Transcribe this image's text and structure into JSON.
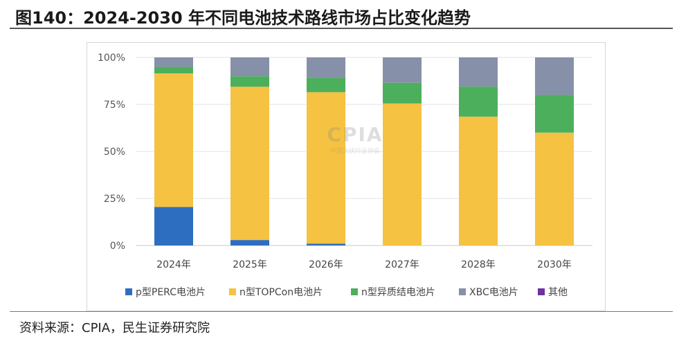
{
  "header": {
    "title": "图140：2024-2030 年不同电池技术路线市场占比变化趋势"
  },
  "footer": {
    "source": "资料来源：CPIA，民生证券研究院"
  },
  "watermark": {
    "logo": "CPIA",
    "subtitle": "中国光伏行业协会"
  },
  "chart_data": {
    "type": "bar",
    "stacked": true,
    "categories": [
      "2024年",
      "2025年",
      "2026年",
      "2027年",
      "2028年",
      "2030年"
    ],
    "y_ticks": [
      "0%",
      "25%",
      "50%",
      "75%",
      "100%"
    ],
    "ylim": [
      0,
      100
    ],
    "grid": true,
    "legend_position": "bottom",
    "series": [
      {
        "name": "p型PERC电池片",
        "color": "#2e6ec1",
        "values": [
          20.5,
          2.9,
          1.0,
          0,
          0,
          0
        ]
      },
      {
        "name": "n型TOPCon电池片",
        "color": "#f5c242",
        "values": [
          71.0,
          81.5,
          80.5,
          75.5,
          68.5,
          60.0
        ]
      },
      {
        "name": "n型异质结电池片",
        "color": "#4caf5c",
        "values": [
          3.5,
          5.6,
          7.5,
          11.0,
          16.0,
          20.0
        ]
      },
      {
        "name": "XBC电池片",
        "color": "#8690a8",
        "values": [
          5.0,
          10.0,
          11.0,
          13.5,
          15.5,
          20.0
        ]
      },
      {
        "name": "其他",
        "color": "#7030a0",
        "values": [
          0,
          0,
          0,
          0,
          0,
          0
        ]
      }
    ]
  }
}
